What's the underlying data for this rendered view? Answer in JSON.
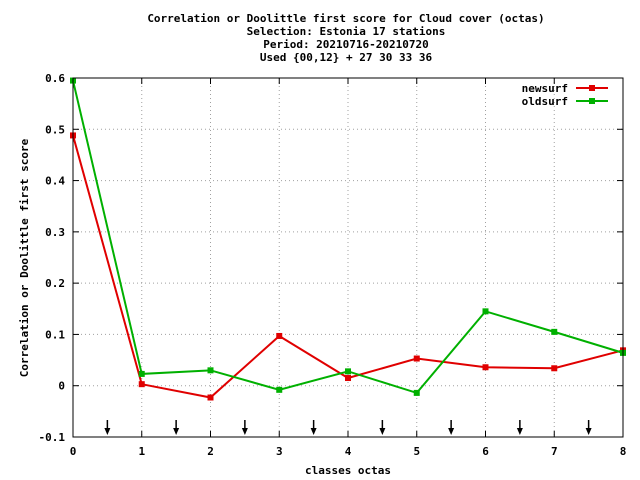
{
  "chart_data": {
    "type": "line",
    "title_lines": [
      "Correlation or Doolittle first score  for Cloud cover (octas)",
      "Selection: Estonia     17 stations",
      "Period: 20210716-20210720",
      "Used {00,12} + 27 30 33 36"
    ],
    "xlabel": "classes octas",
    "ylabel": "Correlation or Doolittle first score",
    "xlim": [
      0,
      8
    ],
    "ylim": [
      -0.1,
      0.6
    ],
    "x_ticks": [
      "0",
      "1",
      "2",
      "3",
      "4",
      "5",
      "6",
      "7",
      "8"
    ],
    "y_ticks": [
      "-0.1",
      "0",
      "0.1",
      "0.2",
      "0.3",
      "0.4",
      "0.5",
      "0.6"
    ],
    "grid": true,
    "legend_position": "top-right",
    "markers_at": [
      0.5,
      1.5,
      2.5,
      3.5,
      4.5,
      5.5,
      6.5,
      7.5
    ],
    "series": [
      {
        "name": "newsurf",
        "color": "#e00000",
        "x": [
          0,
          1,
          2,
          3,
          4,
          5,
          6,
          7,
          8
        ],
        "values": [
          0.488,
          0.003,
          -0.023,
          0.097,
          0.015,
          0.053,
          0.036,
          0.034,
          0.069
        ]
      },
      {
        "name": "oldsurf",
        "color": "#00b000",
        "x": [
          0,
          1,
          2,
          3,
          4,
          5,
          6,
          7,
          8
        ],
        "values": [
          0.595,
          0.023,
          0.03,
          -0.008,
          0.028,
          -0.014,
          0.145,
          0.105,
          0.064
        ]
      }
    ]
  }
}
